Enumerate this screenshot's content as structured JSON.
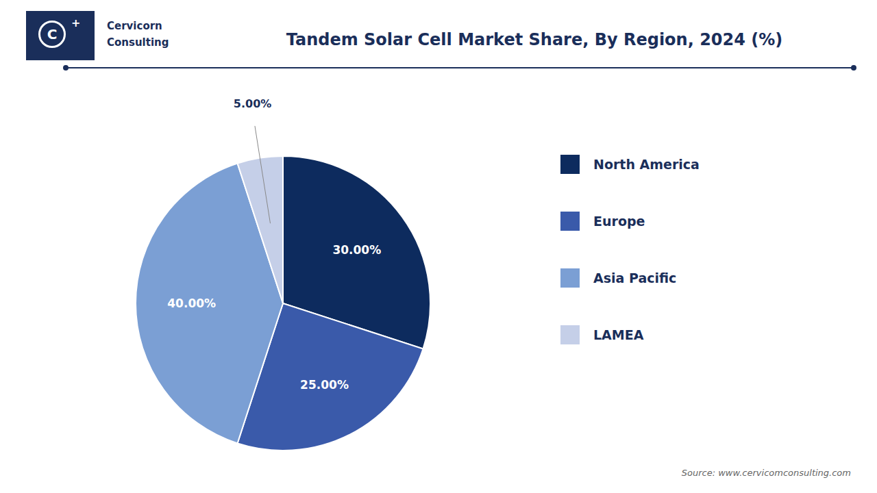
{
  "chart_data": {
    "type": "pie",
    "title": "Tandem Solar Cell Market Share, By Region, 2024 (%)",
    "categories": [
      "North America",
      "Europe",
      "Asia Pacific",
      "LAMEA"
    ],
    "values": [
      30,
      25,
      40,
      5
    ],
    "value_labels": [
      "30.00%",
      "25.00%",
      "40.00%",
      "5.00%"
    ],
    "colors": [
      "#0d2b5e",
      "#3a5aaa",
      "#7b9fd4",
      "#c5cfe8"
    ],
    "data_labels": true,
    "legend": "right",
    "annotations": [
      "C",
      "+",
      "Cervicorn",
      "Consulting",
      "Source: www.cervicomconsulting.com"
    ]
  }
}
